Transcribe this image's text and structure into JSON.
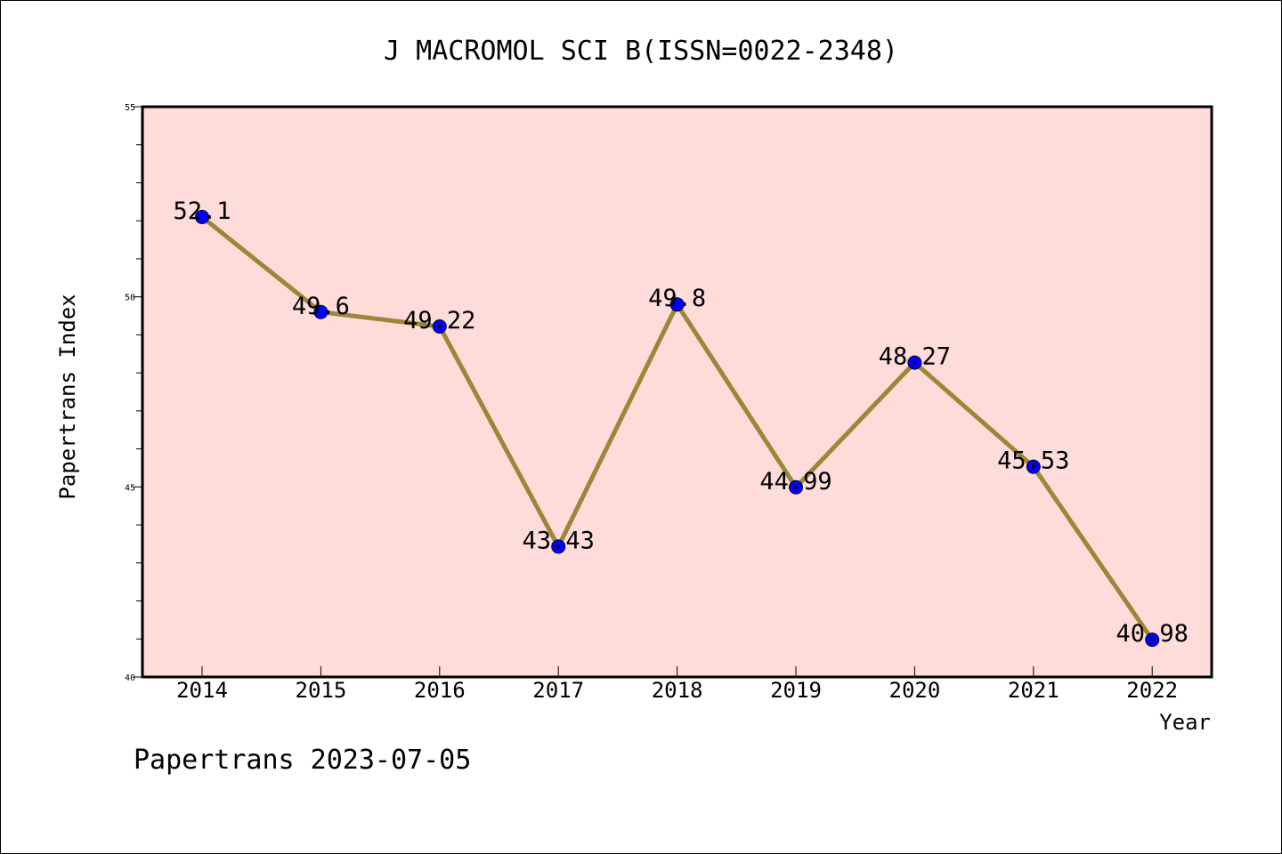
{
  "chart_data": {
    "type": "line",
    "title": "J MACROMOL SCI B(ISSN=0022-2348)",
    "xlabel": "Year",
    "ylabel": "Papertrans Index",
    "categories": [
      "2014",
      "2015",
      "2016",
      "2017",
      "2018",
      "2019",
      "2020",
      "2021",
      "2022"
    ],
    "values": [
      52.1,
      49.6,
      49.22,
      43.43,
      49.8,
      44.99,
      48.27,
      45.53,
      40.98
    ],
    "data_labels": [
      "52.1",
      "49.6",
      "49.22",
      "43.43",
      "49.8",
      "44.99",
      "48.27",
      "45.53",
      "40.98"
    ],
    "ylim": [
      40,
      55
    ],
    "y_ticks": [
      "40",
      "45",
      "50",
      "55"
    ],
    "grid": false,
    "legend": "none",
    "colors": {
      "plot_background": "#fddcda",
      "line": "#9b8738",
      "marker": "#0000ff"
    }
  },
  "footer": {
    "text": "Papertrans 2023-07-05"
  }
}
